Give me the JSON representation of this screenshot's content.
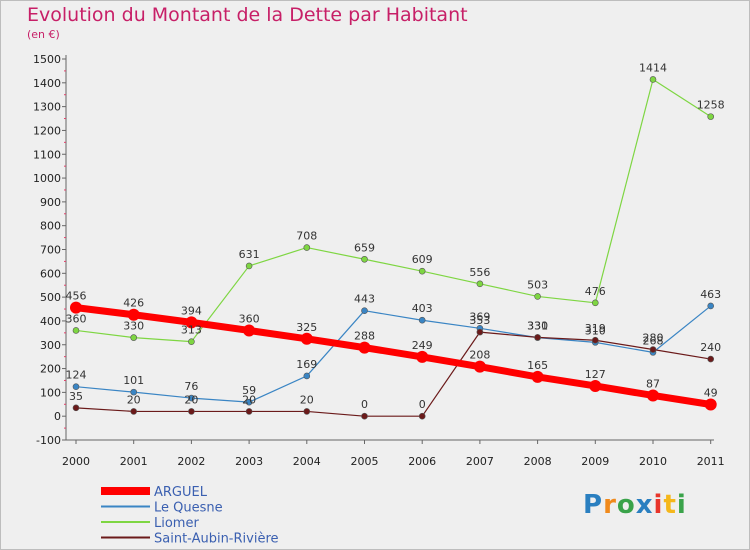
{
  "title": "Evolution du Montant de la Dette par Habitant",
  "subtitle": "(en €)",
  "logo": {
    "text": "Proxiti",
    "colors": [
      "#2a7fc0",
      "#f08a1c",
      "#3aa34a",
      "#2a7fc0",
      "#e8352b",
      "#f5b71b",
      "#3aa34a"
    ]
  },
  "chart_data": {
    "type": "line",
    "title": "Evolution du Montant de la Dette par Habitant",
    "subtitle": "(en €)",
    "xlabel": "",
    "ylabel": "",
    "x": [
      "2000",
      "2001",
      "2002",
      "2003",
      "2004",
      "2005",
      "2006",
      "2007",
      "2008",
      "2009",
      "2010",
      "2011"
    ],
    "ylim": [
      -100,
      1500
    ],
    "yticks": [
      -100,
      0,
      100,
      200,
      300,
      400,
      500,
      600,
      700,
      800,
      900,
      1000,
      1100,
      1200,
      1300,
      1400,
      1500
    ],
    "grid": false,
    "legend_position": "bottom-left",
    "series": [
      {
        "name": "ARGUEL",
        "color": "#ff0000",
        "values": [
          456,
          426,
          394,
          360,
          325,
          288,
          249,
          208,
          165,
          127,
          87,
          49
        ]
      },
      {
        "name": "Le Quesne",
        "color": "#3a85c4",
        "values": [
          124,
          101,
          76,
          59,
          169,
          443,
          403,
          369,
          330,
          310,
          268,
          463
        ]
      },
      {
        "name": "Liomer",
        "color": "#7ed642",
        "values": [
          360,
          330,
          313,
          631,
          708,
          659,
          609,
          556,
          503,
          476,
          1414,
          1258
        ]
      },
      {
        "name": "Saint-Aubin-Rivière",
        "color": "#6b1a1a",
        "values": [
          35,
          20,
          20,
          20,
          20,
          0,
          0,
          353,
          331,
          319,
          280,
          240
        ]
      }
    ]
  }
}
